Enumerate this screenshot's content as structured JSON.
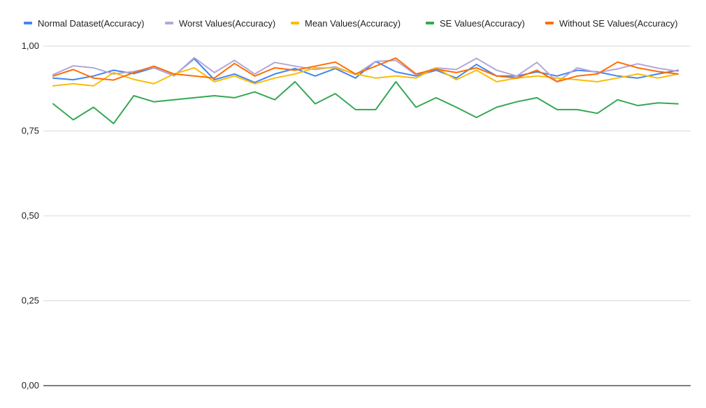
{
  "chart_data": {
    "type": "line",
    "title": "",
    "xlabel": "",
    "ylabel": "",
    "ylim": [
      0,
      1
    ],
    "yticks": [
      0,
      0.25,
      0.5,
      0.75,
      1
    ],
    "ytick_labels": [
      "0,00",
      "0,25",
      "0,50",
      "0,75",
      "1,00"
    ],
    "grid": true,
    "legend_position": "top",
    "x": [
      1,
      2,
      3,
      4,
      5,
      6,
      7,
      8,
      9,
      10,
      11,
      12,
      13,
      14,
      15,
      16,
      17,
      18,
      19,
      20,
      21,
      22,
      23,
      24,
      25,
      26,
      27,
      28,
      29,
      30,
      31,
      32
    ],
    "series": [
      {
        "name": "Normal Dataset(Accuracy)",
        "color": "#4285f4",
        "values": [
          0.906,
          0.901,
          0.912,
          0.929,
          0.919,
          0.936,
          0.913,
          0.963,
          0.901,
          0.918,
          0.893,
          0.918,
          0.934,
          0.912,
          0.934,
          0.906,
          0.955,
          0.924,
          0.912,
          0.929,
          0.906,
          0.946,
          0.912,
          0.912,
          0.924,
          0.912,
          0.929,
          0.924,
          0.912,
          0.906,
          0.918,
          0.929
        ]
      },
      {
        "name": "Worst Values(Accuracy)",
        "color": "#b4a7d6",
        "values": [
          0.916,
          0.942,
          0.936,
          0.918,
          0.925,
          0.937,
          0.912,
          0.966,
          0.922,
          0.958,
          0.918,
          0.952,
          0.941,
          0.931,
          0.939,
          0.916,
          0.955,
          0.958,
          0.915,
          0.936,
          0.931,
          0.964,
          0.929,
          0.912,
          0.952,
          0.895,
          0.936,
          0.922,
          0.933,
          0.948,
          0.935,
          0.926
        ]
      },
      {
        "name": "Mean Values(Accuracy)",
        "color": "#fbbc04",
        "values": [
          0.883,
          0.889,
          0.883,
          0.922,
          0.902,
          0.889,
          0.918,
          0.936,
          0.895,
          0.912,
          0.889,
          0.906,
          0.918,
          0.936,
          0.936,
          0.918,
          0.906,
          0.912,
          0.906,
          0.936,
          0.901,
          0.929,
          0.895,
          0.906,
          0.912,
          0.906,
          0.901,
          0.895,
          0.906,
          0.918,
          0.906,
          0.918
        ]
      },
      {
        "name": "SE Values(Accuracy)",
        "color": "#34a853",
        "values": [
          0.83,
          0.783,
          0.82,
          0.772,
          0.854,
          0.836,
          0.842,
          0.848,
          0.854,
          0.848,
          0.865,
          0.842,
          0.895,
          0.83,
          0.86,
          0.813,
          0.813,
          0.895,
          0.82,
          0.848,
          0.82,
          0.79,
          0.82,
          0.836,
          0.848,
          0.813,
          0.813,
          0.802,
          0.842,
          0.825,
          0.833,
          0.83
        ]
      },
      {
        "name": "Without SE Values(Accuracy)",
        "color": "#ff6d01",
        "values": [
          0.912,
          0.931,
          0.906,
          0.9,
          0.922,
          0.941,
          0.918,
          0.912,
          0.906,
          0.949,
          0.912,
          0.936,
          0.929,
          0.941,
          0.953,
          0.918,
          0.941,
          0.965,
          0.918,
          0.932,
          0.922,
          0.936,
          0.912,
          0.906,
          0.929,
          0.895,
          0.912,
          0.918,
          0.953,
          0.936,
          0.925,
          0.918
        ]
      }
    ]
  }
}
